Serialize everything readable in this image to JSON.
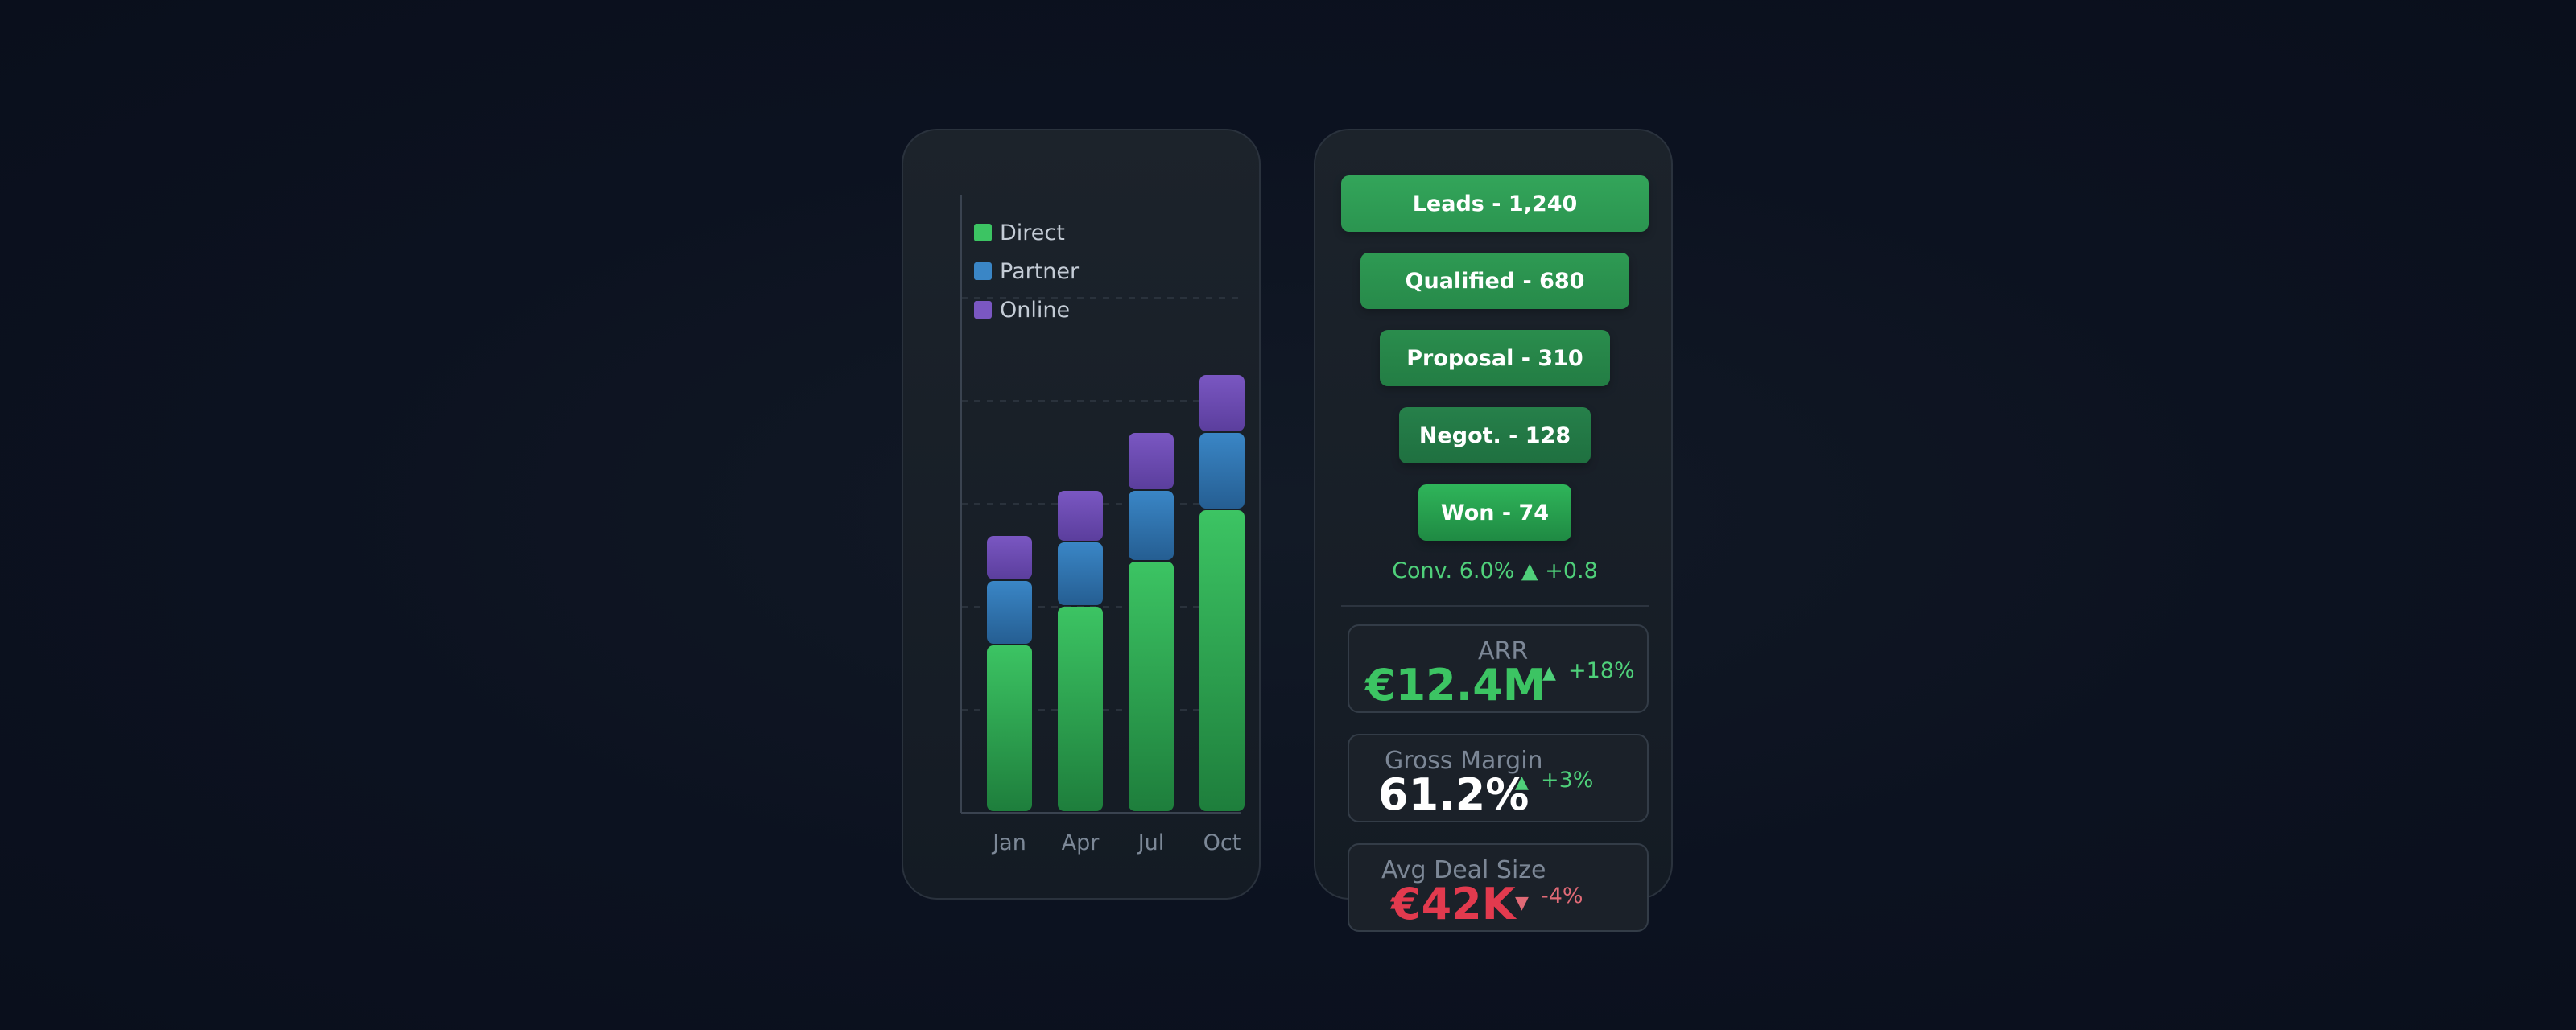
{
  "colors": {
    "direct": "#3cc463",
    "partner": "#3a86c6",
    "online": "#7a57c2",
    "positive": "#4fd07a",
    "negative": "#e23a4e",
    "stage_bar": "#2f9e55"
  },
  "chart_data": {
    "type": "bar",
    "stacked": true,
    "categories": [
      "Jan",
      "Apr",
      "Jul",
      "Oct"
    ],
    "series": [
      {
        "name": "Direct",
        "values": [
          52,
          64,
          78,
          94
        ]
      },
      {
        "name": "Partner",
        "values": [
          20,
          20,
          22,
          24
        ]
      },
      {
        "name": "Online",
        "values": [
          14,
          16,
          18,
          18
        ]
      }
    ],
    "ylim": [
      0,
      160
    ],
    "grid": true,
    "legend_position": "top-left",
    "title": "",
    "xlabel": "",
    "ylabel": ""
  },
  "funnel": {
    "stages": [
      {
        "label": "Leads - 1,240",
        "value": 1240
      },
      {
        "label": "Qualified - 680",
        "value": 680
      },
      {
        "label": "Proposal - 310",
        "value": 310
      },
      {
        "label": "Negot. - 128",
        "value": 128
      },
      {
        "label": "Won - 74",
        "value": 74
      }
    ],
    "conversion": "Conv. 6.0% ▲ +0.8"
  },
  "kpis": [
    {
      "label": "ARR",
      "value": "€12.4M",
      "arrow": "▲",
      "delta": "+18%",
      "trend": "up"
    },
    {
      "label": "Gross Margin",
      "value": "61.2%",
      "arrow": "▲",
      "delta": "+3%",
      "trend": "up"
    },
    {
      "label": "Avg Deal Size",
      "value": "€42K",
      "arrow": "▼",
      "delta": "-4%",
      "trend": "down"
    }
  ]
}
